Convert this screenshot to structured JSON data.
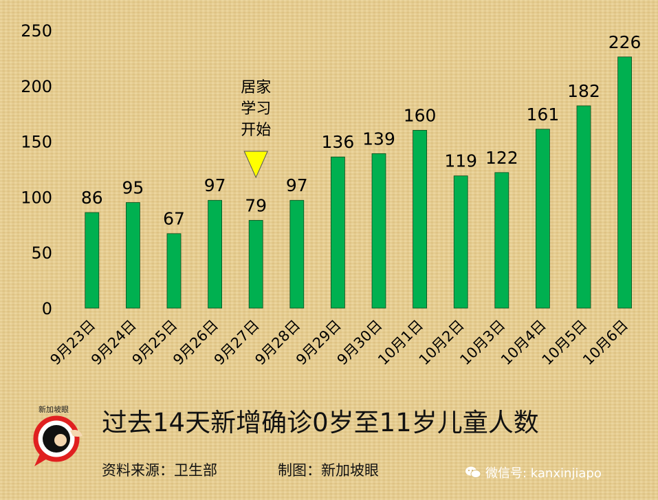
{
  "chart_data": {
    "type": "bar",
    "categories": [
      "9月23日",
      "9月24日",
      "9月25日",
      "9月26日",
      "9月27日",
      "9月28日",
      "9月29日",
      "9月30日",
      "10月1日",
      "10月2日",
      "10月3日",
      "10月4日",
      "10月5日",
      "10月6日"
    ],
    "values": [
      86,
      95,
      67,
      97,
      79,
      97,
      136,
      139,
      160,
      119,
      122,
      161,
      182,
      226
    ],
    "ylim": [
      0,
      250
    ],
    "yticks": [
      0,
      50,
      100,
      150,
      200,
      250
    ],
    "grid": false,
    "bar_color": "#00b050",
    "annotation": {
      "category": "9月27日",
      "lines": [
        "居家",
        "学习",
        "开始"
      ],
      "marker": "yellow-triangle-down",
      "marker_color": "#ffff00"
    }
  },
  "title": "过去14天新增确诊0岁至11岁儿童人数",
  "source": "资料来源：卫生部",
  "credit": "制图：新加坡眼",
  "logo_text": "新加坡眼",
  "watermark": "微信号: kanxinjiapo"
}
